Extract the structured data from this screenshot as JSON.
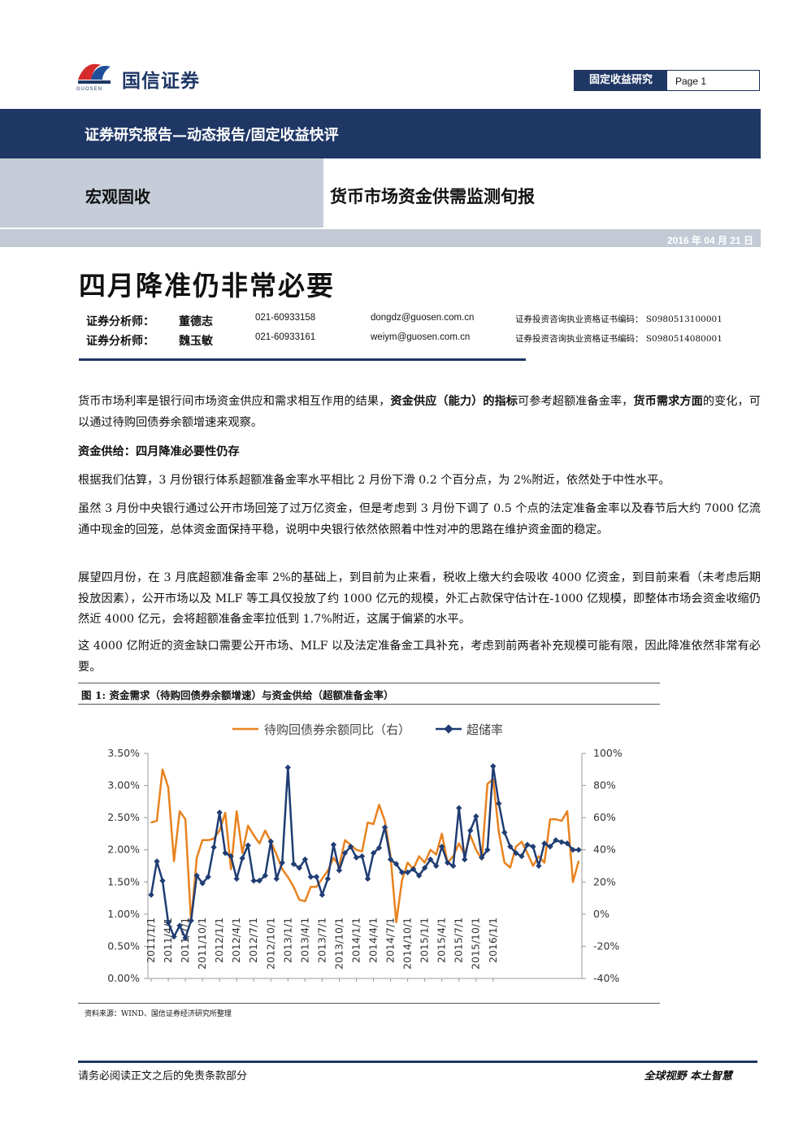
{
  "header": {
    "logo_text": "国信证券",
    "logo_sub": "GUOSEN",
    "category": "固定收益研究",
    "page_label": "Page 1"
  },
  "banner": {
    "report_type": "证券研究报告—动态报告/固定收益快评",
    "sector": "宏观固收",
    "series_title": "货币市场资金供需监测旬报",
    "date": "2016 年 04 月 21 日"
  },
  "title": "四月降准仍非常必要",
  "analysts": [
    {
      "label": "证券分析师：",
      "name": "董德志",
      "phone": "021-60933158",
      "email": "dongdz@guosen.com.cn",
      "cert": "证券投资咨询执业资格证书编码：  S0980513100001"
    },
    {
      "label": "证券分析师：",
      "name": "魏玉敏",
      "phone": "021-60933161",
      "email": "weiym@guosen.com.cn",
      "cert": "证券投资咨询执业资格证书编码：  S0980514080001"
    }
  ],
  "intro": {
    "p1": "货币市场利率是银行间市场资金供应和需求相互作用的结果，",
    "b1": "资金供应（能力）的指标",
    "p2": "可参考超额准备金率，",
    "b2": "货币需求方面",
    "p3": "的变化，可以通过待购回债券余额增速来观察。"
  },
  "section_heading": "资金供给：四月降准必要性仍存",
  "paragraphs": [
    "根据我们估算，3 月份银行体系超额准备金率水平相比 2 月份下滑 0.2 个百分点，为 2%附近，依然处于中性水平。",
    "虽然 3 月份中央银行通过公开市场回笼了过万亿资金，但是考虑到 3 月份下调了 0.5 个点的法定准备金率以及春节后大约 7000 亿流通中现金的回笼，总体资金面保持平稳，说明中央银行依然依照着中性对冲的思路在维护资金面的稳定。",
    "展望四月份，在 3 月底超额准备金率 2%的基础上，到目前为止来看，税收上缴大约会吸收 4000 亿资金，到目前来看（未考虑后期投放因素），公开市场以及 MLF 等工具仅投放了约 1000 亿元的规模，外汇占款保守估计在-1000 亿规模，即整体市场会资金收缩仍然近 4000 亿元，会将超额准备金率拉低到 1.7%附近，这属于偏紧的水平。",
    "这 4000 亿附近的资金缺口需要公开市场、MLF 以及法定准备金工具补充，考虑到前两者补充规模可能有限，因此降准依然非常有必要。"
  ],
  "figure": {
    "title": "图 1:  资金需求（待购回债券余额增速）与资金供给（超额准备金率）",
    "source": "资料来源：WIND、国信证券经济研究所整理"
  },
  "chart_data": {
    "type": "line",
    "title": "",
    "legend_position": "top",
    "grid": false,
    "x_tick_labels": [
      "2011/1/1",
      "2011/4/1",
      "2011/7/1",
      "2011/10/1",
      "2012/1/1",
      "2012/4/1",
      "2012/7/1",
      "2012/10/1",
      "2013/1/1",
      "2013/4/1",
      "2013/7/1",
      "2013/10/1",
      "2014/1/1",
      "2014/4/1",
      "2014/7/1",
      "2014/10/1",
      "2015/1/1",
      "2015/4/1",
      "2015/7/1",
      "2015/10/1",
      "2016/1/1"
    ],
    "x_start": "2011-01",
    "x_end": "2016-03",
    "y_left": {
      "ticks": [
        "0.00%",
        "0.50%",
        "1.00%",
        "1.50%",
        "2.00%",
        "2.50%",
        "3.00%",
        "3.50%"
      ],
      "range": [
        0,
        3.5
      ]
    },
    "y_right": {
      "ticks": [
        "-40%",
        "-20%",
        "0%",
        "20%",
        "40%",
        "60%",
        "80%",
        "100%"
      ],
      "range": [
        -40,
        100
      ]
    },
    "series": [
      {
        "name": "待购回债券余额同比（右）",
        "axis": "right",
        "color": "#e8821e",
        "values": [
          57,
          58,
          90,
          79,
          33,
          64,
          59,
          -5,
          35,
          46,
          46,
          47,
          52,
          63,
          28,
          64,
          38,
          55,
          49,
          44,
          52,
          45,
          37,
          28,
          23,
          17,
          9,
          8,
          17,
          17,
          22,
          27,
          35,
          30,
          46,
          43,
          40,
          39,
          57,
          56,
          68,
          58,
          36,
          -5,
          21,
          32,
          28,
          36,
          32,
          40,
          37,
          50,
          32,
          36,
          44,
          37,
          49,
          40,
          34,
          81,
          84,
          51,
          32,
          29,
          42,
          45,
          38,
          30,
          36,
          32,
          59,
          59,
          58,
          64,
          20,
          33
        ],
        "value_unit": "%"
      },
      {
        "name": "超储率",
        "axis": "left",
        "color": "#1f3d73",
        "marker": "diamond",
        "values": [
          1.3,
          1.82,
          1.52,
          0.87,
          0.65,
          0.82,
          0.63,
          0.9,
          1.6,
          1.48,
          1.58,
          2.04,
          2.58,
          1.95,
          1.9,
          1.55,
          1.87,
          2.07,
          1.52,
          1.52,
          1.6,
          2.13,
          1.55,
          1.8,
          3.28,
          1.78,
          1.72,
          1.85,
          1.58,
          1.58,
          1.3,
          1.55,
          2.08,
          1.68,
          1.95,
          2.05,
          1.88,
          1.9,
          1.55,
          1.95,
          2.03,
          2.35,
          1.85,
          1.78,
          1.65,
          1.65,
          1.7,
          1.6,
          1.72,
          1.85,
          1.75,
          2.05,
          1.8,
          1.75,
          2.65,
          1.85,
          2.3,
          2.52,
          1.88,
          2.0,
          3.3,
          2.72,
          2.27,
          2.05,
          1.95,
          1.9,
          2.08,
          2.05,
          1.75,
          2.1,
          2.05,
          2.15,
          2.12,
          2.1,
          2.0,
          2.0
        ]
      }
    ]
  },
  "footer": {
    "left": "请务必阅读正文之后的免责条款部分",
    "right": "全球视野   本土智慧"
  },
  "colors": {
    "navy": "#1f3765",
    "band_light": "#c6cdd8",
    "orange": "#e8821e",
    "series_blue": "#1f3d73"
  }
}
